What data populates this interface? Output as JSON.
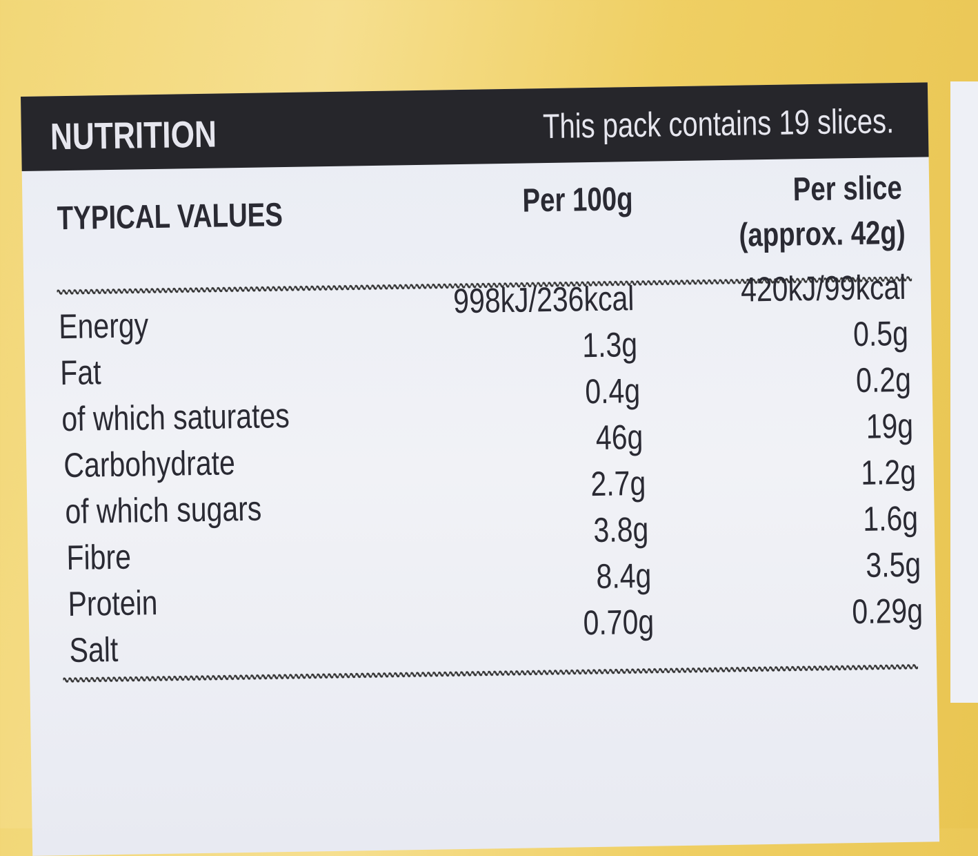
{
  "header": {
    "title": "NUTRITION",
    "note": "This pack contains 19 slices."
  },
  "table": {
    "columns": [
      "TYPICAL VALUES",
      "Per 100g",
      "Per slice"
    ],
    "column_note": "(approx. 42g)",
    "rows": [
      [
        "Energy",
        "998kJ/236kcal",
        "420kJ/99kcal"
      ],
      [
        "Fat",
        "1.3g",
        "0.5g"
      ],
      [
        "of which saturates",
        "0.4g",
        "0.2g"
      ],
      [
        "Carbohydrate",
        "46g",
        "19g"
      ],
      [
        "of which sugars",
        "2.7g",
        "1.2g"
      ],
      [
        "Fibre",
        "3.8g",
        "1.6g"
      ],
      [
        "Protein",
        "8.4g",
        "3.5g"
      ],
      [
        "Salt",
        "0.70g",
        "0.29g"
      ]
    ]
  }
}
